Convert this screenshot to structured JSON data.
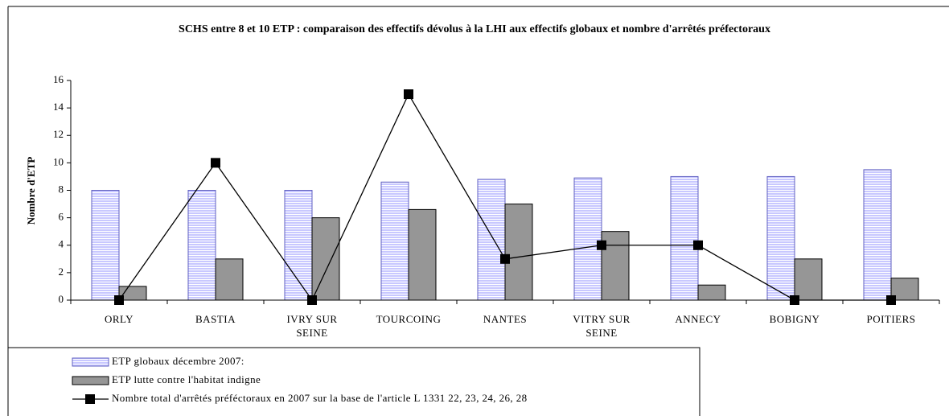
{
  "chart_data": {
    "type": "bar_line",
    "title": "SCHS entre 8 et 10 ETP  : comparaison des effectifs dévolus à la LHI aux effectifs globaux et nombre d'arrêtés préfectoraux",
    "y_label": "Nombre d'ETP",
    "categories": [
      "ORLY",
      "BASTIA",
      "IVRY SUR SEINE",
      "TOURCOING",
      "NANTES",
      "VITRY SUR SEINE",
      "ANNECY",
      "BOBIGNY",
      "POITIERS"
    ],
    "series": [
      {
        "name": "ETP globaux décembre 2007:",
        "type": "bar",
        "color": "#c8c8ff",
        "values": [
          8,
          8,
          8,
          8.6,
          8.8,
          8.9,
          9,
          9,
          9.5
        ]
      },
      {
        "name": "ETP lutte contre l'habitat indigne",
        "type": "bar",
        "color": "#969696",
        "values": [
          1,
          3,
          6,
          6.6,
          7,
          5,
          1.1,
          3,
          1.6
        ]
      },
      {
        "name": "Nombre total d'arrêtés préféctoraux en 2007 sur la base de l'article L 1331 22, 23, 24, 26, 28",
        "type": "line",
        "color": "#000000",
        "values": [
          0,
          10,
          0,
          15,
          3,
          4,
          4,
          0,
          0
        ]
      }
    ],
    "ylim": [
      0,
      16
    ],
    "yticks": [
      0,
      2,
      4,
      6,
      8,
      10,
      12,
      14,
      16
    ],
    "legend": "bottom-left"
  }
}
